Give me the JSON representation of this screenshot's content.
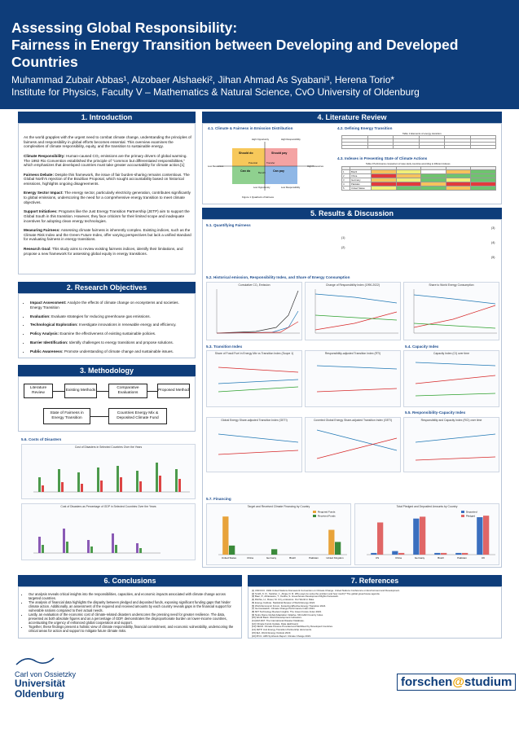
{
  "header": {
    "title_line1": "Assessing Global Responsibility:",
    "title_line2": "Fairness in Energy Transition between Developing and Developed",
    "title_line3": "Countries",
    "authors": "Muhammad Zubair Abbas¹, Alzobaer Alshaeki², Jihan Ahmad As Syabani³, Herena Torio*",
    "institute": "Institute for Physics, Faculty V – Mathematics & Natural Science, CvO University of Oldenburg"
  },
  "intro": {
    "heading": "1. Introduction",
    "p1": "As the world grapples with the urgent need to combat climate change, understanding the principles of fairness and responsibility in global efforts becomes essential. This overview examines the complexities of climate responsibility, equity, and the transition to sustainable energy.",
    "p2_label": "Climate Responsibility:",
    "p2": "Human-caused CO₂ emissions are the primary drivers of global warming. The 1992 Rio Convention established the principle of \"common but differentiated responsibilities,\" which emphasizes that developed countries must take greater accountability for climate action.[1]",
    "p3_label": "Fairness Debate:",
    "p3": "Despite this framework, the issue of fair burden-sharing remains contentious. The Global North's rejection of the Brazilian Proposal, which sought accountability based on historical emissions, highlights ongoing disagreements.",
    "p4_label": "Energy Sector Impact:",
    "p4": "The energy sector, particularly electricity generation, contributes significantly to global emissions, underscoring the need for a comprehensive energy transition to meet climate objectives.",
    "p5_label": "Support Initiatives:",
    "p5": "Programs like the Just Energy Transition Partnership (JETP) aim to support the Global South in this transition. However, they face criticism for their limited scope and inadequate incentives for adopting clean energy technologies.",
    "p6_label": "Measuring Fairness:",
    "p6": "Assessing climate fairness is inherently complex. Existing indices, such as the Climate Risk Index and the Green Future Index, offer varying perspectives but lack a unified standard for evaluating fairness in energy transitions.",
    "p7_label": "Research Goal:",
    "p7": "This study aims to review existing fairness indices, identify their limitations, and propose a new framework for assessing global equity in energy transitions."
  },
  "objectives": {
    "heading": "2. Research Objectives",
    "items": [
      {
        "label": "Impact Assessment:",
        "text": "Analyze the effects of climate change on ecosystems and societies. Energy Transition"
      },
      {
        "label": "Evaluation:",
        "text": "Evaluate strategies for reducing greenhouse gas emissions."
      },
      {
        "label": "Technological Exploration:",
        "text": "Investigate innovations in renewable energy and efficiency."
      },
      {
        "label": "Policy Analysis:",
        "text": "Examine the effectiveness of existing sustainable policies."
      },
      {
        "label": "Barrier Identification:",
        "text": "Identify challenges to energy transitions and propose solutions."
      },
      {
        "label": "Public Awareness:",
        "text": "Promote understanding of climate change and sustainable issues."
      }
    ]
  },
  "methodology": {
    "heading": "3. Methodology",
    "boxes": [
      "Literature Review",
      "Existing Methods",
      "Comparative Evaluations",
      "Proposed Method",
      "State of Fairness in Energy Transition",
      "Countries Energy Mix & Deposited Climate Fund"
    ]
  },
  "literature": {
    "heading": "4. Literature Review",
    "s41": "4.1. Climate & Fairness in Emission Distribution",
    "s42": "4.2. Defining Energy Transition",
    "s43": "4.3. Indexes in Presenting State of Climate Actions",
    "quad": {
      "tl": "Should do",
      "tr": "Should pay",
      "bl": "Can do",
      "br": "Can pay",
      "top": "High Opportunity",
      "right_top": "High Responsibility",
      "left": "Low Resources",
      "right": "High Resources",
      "bottom": "Low Opportunity",
      "bottom_right": "Low Responsibility",
      "center_l": "Potential",
      "center_r": "Transfer",
      "center_b": "Benefit"
    },
    "fig_caption": "Figure 1 Quadrant of fairness",
    "table1_title": "Table 1 Elements of energy transition",
    "table2_title": "Table 2 Performance comparison of case study countries according to different indexes",
    "countries": [
      "Brazil",
      "China",
      "Germany",
      "Pakistan",
      "United States"
    ]
  },
  "results": {
    "heading": "5. Results & Discussion",
    "s51": "5.1. Quantifying Fairness",
    "eq": [
      "(1)",
      "(2)",
      "(3)",
      "(4)",
      "(5)"
    ],
    "s52": "5.2. Historical emission, Responsibility Index, and Share of Energy Consumption",
    "s53": "5.3. Transition Index",
    "s54": "5.4. Capacity Index",
    "s55": "5.5. Responsibility-Capacity Index",
    "s56": "5.6. Costs of Disasters",
    "s57": "5.7. Financing",
    "charts": {
      "c1": "Cumulative CO₂ Emission",
      "c2": "Change of Responsibility Index (1990-2022)",
      "c3": "Share to World Energy Consumption",
      "c4": "Share of Fossil Fuel in Energy Mix vs Transition Index (Scope 1)",
      "c5": "Responsibility-adjusted Transition Index (RTI)",
      "c6": "Capacity Index (CI) over time",
      "c7": "Global Energy Share-adjusted Transition Index (GETI)",
      "c8": "Coverted Global Energy Share-adjusted Transition Index (GETI)",
      "c9": "Responsibility and Capacity Index (RCI) over time",
      "c10": "Cost of Disasters in Selected Countries Over the Years",
      "c11": "Cost of Disasters as Percentage of GDP in Selected Countries Over the Years",
      "c12": "Target and Received Climate Financing by Country",
      "c13": "Total Pledged and Deposited Amounts by Country"
    },
    "legend_countries": [
      "United States",
      "China",
      "Germany",
      "Brazil",
      "Pakistan",
      "United Kingdom"
    ]
  },
  "chart_data": [
    {
      "type": "bar",
      "title": "Target and Received Climate Financing by Country",
      "categories": [
        "United States",
        "China",
        "Germany",
        "Brazil",
        "Pakistan",
        "United Kingdom"
      ],
      "series": [
        {
          "name": "Required Funds",
          "values": [
            6300,
            0,
            0,
            0,
            0,
            4100
          ]
        },
        {
          "name": "Received Funds",
          "values": [
            1500,
            0,
            900,
            0,
            0,
            2100
          ]
        }
      ],
      "ylabel": "Amount (USD million)",
      "ylim": [
        0,
        7000
      ]
    },
    {
      "type": "bar",
      "title": "Total Pledged and Deposited Amounts by Country",
      "categories": [
        "US",
        "China",
        "Germany",
        "Brazil",
        "Pakistan",
        "UK"
      ],
      "series": [
        {
          "name": "Deposited",
          "values": [
            100,
            210,
            2130,
            100,
            100,
            2210
          ]
        },
        {
          "name": "Pledged",
          "values": [
            1900,
            100,
            2240,
            100,
            100,
            2300
          ]
        }
      ],
      "ylabel": "Amount (USD million)"
    }
  ],
  "conclusions": {
    "heading": "6. Conclusions",
    "items": [
      "Our analysis reveals critical insights into the responsibilities, capacities, and economic impacts associated with climate change across targeted countries.",
      "The analysis of financial data highlights the disparity between pledged and deposited funds, exposing significant funding gaps that hinder climate action. Additionally, an assessment of the required and received amounts by each country reveals gaps in the financial support for vulnerable nations compared to their actual needs.",
      "Lastly, an evaluation of the economic cost of climate-related disasters underscores the pressing need for greater resilience. The data, presented as both absolute figures and as a percentage of GDP, demonstrates the disproportionate burden on lower-income countries, accentuating the urgency of enhanced global cooperation and support.",
      "Together, these findings present a holistic view of climate responsibility, financial commitment, and economic vulnerability, underscoring the critical areas for action and support to mitigate future climate risks."
    ]
  },
  "references": {
    "heading": "7. References",
    "items": [
      "[1] UNFCCC. 1992 United Nations Framework Convention on Climate Change. United Nations Conference on Environment and Development.",
      "[2] Smith, K. R., Swisher, J., Ahuja, D. R. Who pays (to solve the problem and how much)? The global greenhouse agenda.",
      "[3] Baer, P., Athanasiou, T., Kartha, S. Greenhouse Development Rights framework.",
      "[4] Ritchie, H., Roser, M. CO₂ emissions. Our World in Data.",
      "[5] Energy Institute. Statistical Review of World Energy 2024.",
      "[6] World Economic Forum. Fostering Effective Energy Transition 2024.",
      "[7] Germanwatch. Climate Change Performance Index 2024.",
      "[8] MIT Technology Review Insights. The Green Future Index 2023.",
      "[9] Notre Dame Global Adaptation Initiative. ND-GAIN Country Index.",
      "[10] World Bank. World Development Indicators.",
      "[11] EM-DAT. The International Disaster Database.",
      "[12] Climate Funds Update. Data dashboard.",
      "[13] OECD. Climate Finance Provided and Mobilised by Developed Countries.",
      "[14] JETP. Just Energy Transition Partnership documents.",
      "[15] IEA. World Energy Outlook 2023.",
      "[16] IPCC. AR6 Synthesis Report: Climate Change 2023.",
      "[17] UNEP. Emissions Gap Report 2023."
    ]
  },
  "logos": {
    "left_line1": "Carl von Ossietzky",
    "left_line2": "Universität",
    "left_line3": "Oldenburg",
    "right_a": "forschen",
    "right_at": "@",
    "right_b": "studium"
  },
  "colors": {
    "primary": "#0e3d7a",
    "accent": "#1f4e8f"
  }
}
